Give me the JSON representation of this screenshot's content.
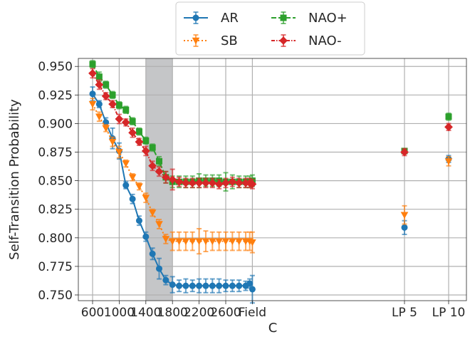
{
  "chart_data": {
    "type": "line",
    "xlabel": "C",
    "ylabel": "Self-Transition Probability",
    "x_tick_labels": [
      "600",
      "1000",
      "1400",
      "1800",
      "2200",
      "2600",
      "Field",
      "LP 5",
      "LP 10"
    ],
    "y_ticks": [
      "0.750",
      "0.775",
      "0.800",
      "0.825",
      "0.850",
      "0.875",
      "0.900",
      "0.925",
      "0.950"
    ],
    "ylim": [
      0.745,
      0.957
    ],
    "grid": true,
    "legend_placement": "top-center",
    "shaded_region": [
      1400,
      1800
    ],
    "line_x": [
      600,
      700,
      800,
      900,
      1000,
      1100,
      1200,
      1300,
      1400,
      1500,
      1600,
      1700,
      1800,
      1900,
      2000,
      2100,
      2200,
      2300,
      2400,
      2500,
      2600,
      2700,
      2800,
      2900
    ],
    "series": [
      {
        "name": "AR",
        "color": "#1f77b4",
        "marker": "circle",
        "linestyle": "solid",
        "values": [
          0.926,
          0.917,
          0.901,
          0.887,
          0.876,
          0.846,
          0.834,
          0.815,
          0.801,
          0.786,
          0.773,
          0.763,
          0.759,
          0.758,
          0.758,
          0.758,
          0.758,
          0.758,
          0.758,
          0.758,
          0.758,
          0.758,
          0.758,
          0.758
        ],
        "errors": [
          0.006,
          0.003,
          0.004,
          0.009,
          0.007,
          0.003,
          0.004,
          0.004,
          0.004,
          0.005,
          0.009,
          0.004,
          0.007,
          0.005,
          0.006,
          0.005,
          0.006,
          0.006,
          0.006,
          0.006,
          0.005,
          0.005,
          0.005,
          0.004
        ],
        "last": 0.76,
        "last_error": 0.004,
        "field": 0.755,
        "field_error": 0.012,
        "lp5": 0.809,
        "lp5_error": 0.006,
        "lp10": 0.869,
        "lp10_error": 0.003
      },
      {
        "name": "SB",
        "color": "#ff7f0e",
        "marker": "triangle-down",
        "linestyle": "dotted",
        "values": [
          0.917,
          0.906,
          0.896,
          0.884,
          0.875,
          0.865,
          0.853,
          0.845,
          0.835,
          0.822,
          0.812,
          0.799,
          0.797,
          0.797,
          0.797,
          0.797,
          0.797,
          0.797,
          0.797,
          0.797,
          0.797,
          0.797,
          0.797,
          0.797
        ],
        "errors": [
          0.005,
          0.004,
          0.003,
          0.004,
          0.005,
          0.003,
          0.003,
          0.003,
          0.004,
          0.003,
          0.004,
          0.004,
          0.008,
          0.008,
          0.008,
          0.008,
          0.011,
          0.009,
          0.008,
          0.008,
          0.008,
          0.008,
          0.008,
          0.008
        ],
        "last": 0.797,
        "last_error": 0.008,
        "field": 0.796,
        "field_error": 0.009,
        "lp5": 0.82,
        "lp5_error": 0.008,
        "lp10": 0.867,
        "lp10_error": 0.004
      },
      {
        "name": "NAO+",
        "color": "#2ca02c",
        "marker": "square",
        "linestyle": "dashed",
        "values": [
          0.952,
          0.941,
          0.934,
          0.925,
          0.916,
          0.912,
          0.902,
          0.893,
          0.885,
          0.879,
          0.867,
          0.853,
          0.849,
          0.849,
          0.849,
          0.849,
          0.85,
          0.85,
          0.85,
          0.85,
          0.849,
          0.849,
          0.849,
          0.849
        ],
        "errors": [
          0.003,
          0.004,
          0.003,
          0.003,
          0.003,
          0.003,
          0.003,
          0.003,
          0.003,
          0.003,
          0.004,
          0.005,
          0.005,
          0.005,
          0.005,
          0.005,
          0.006,
          0.005,
          0.005,
          0.005,
          0.008,
          0.006,
          0.005,
          0.005
        ],
        "last": 0.849,
        "last_error": 0.005,
        "field": 0.85,
        "field_error": 0.005,
        "lp5": 0.876,
        "lp5_error": 0.002,
        "lp10": 0.906,
        "lp10_error": 0.003
      },
      {
        "name": "NAO-",
        "color": "#d62728",
        "marker": "diamond",
        "linestyle": "dashdot",
        "values": [
          0.944,
          0.934,
          0.924,
          0.917,
          0.904,
          0.901,
          0.892,
          0.884,
          0.876,
          0.863,
          0.858,
          0.853,
          0.851,
          0.849,
          0.848,
          0.848,
          0.848,
          0.848,
          0.848,
          0.847,
          0.848,
          0.849,
          0.848,
          0.848
        ],
        "errors": [
          0.004,
          0.004,
          0.003,
          0.003,
          0.004,
          0.003,
          0.004,
          0.003,
          0.004,
          0.004,
          0.004,
          0.005,
          0.009,
          0.004,
          0.004,
          0.004,
          0.004,
          0.004,
          0.004,
          0.004,
          0.004,
          0.004,
          0.004,
          0.004
        ],
        "last": 0.848,
        "last_error": 0.004,
        "field": 0.847,
        "field_error": 0.004,
        "lp5": 0.875,
        "lp5_error": 0.003,
        "lp10": 0.897,
        "lp10_error": 0.003
      }
    ]
  }
}
